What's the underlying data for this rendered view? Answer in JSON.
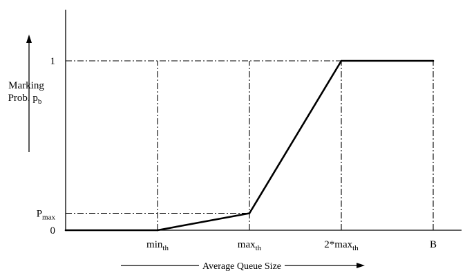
{
  "chart_data": {
    "type": "line",
    "title": "",
    "xlabel": "Average Queue Size",
    "ylabel": "Marking Prob. p",
    "ylabel_sub": "b",
    "x_ticks": [
      {
        "key": "min_th",
        "label": "min",
        "sub": "th",
        "x": 1
      },
      {
        "key": "max_th",
        "label": "max",
        "sub": "th",
        "x": 2
      },
      {
        "key": "2max_th",
        "label": "2*max",
        "sub": "th",
        "x": 3
      },
      {
        "key": "B",
        "label": "B",
        "sub": "",
        "x": 4
      }
    ],
    "y_ticks": [
      {
        "key": "0",
        "label": "0",
        "sub": "",
        "y": 0
      },
      {
        "key": "p_max",
        "label": "P",
        "sub": "max",
        "y": 0.1
      },
      {
        "key": "1",
        "label": "1",
        "sub": "",
        "y": 1
      }
    ],
    "series": [
      {
        "points": [
          {
            "x": 0,
            "y": 0
          },
          {
            "x": 1,
            "y": 0
          },
          {
            "x": 2,
            "y": 0.1
          },
          {
            "x": 3,
            "y": 1
          },
          {
            "x": 4,
            "y": 1
          }
        ]
      }
    ],
    "guides": {
      "vertical_at_x": [
        1,
        2,
        3,
        4
      ],
      "horizontal_at_y": [
        0.1,
        1
      ]
    },
    "colors": {
      "line": "#000000",
      "background": "#ffffff"
    }
  }
}
